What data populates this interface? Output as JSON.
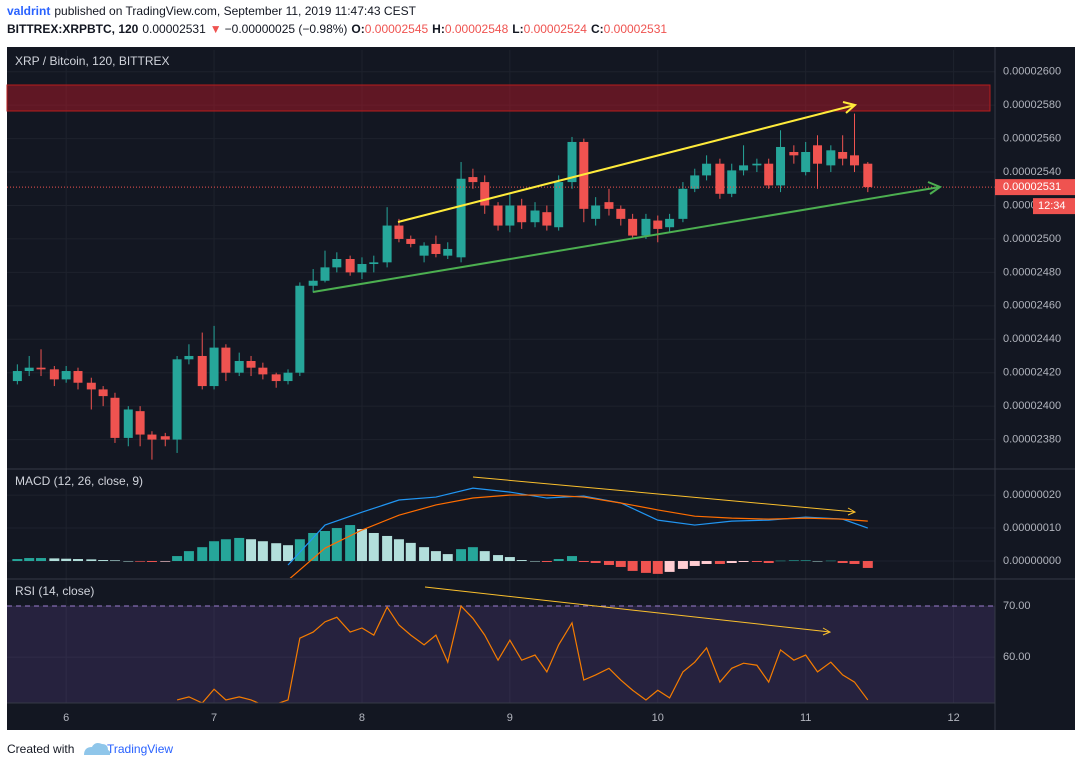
{
  "header": {
    "author": "valdrint",
    "published": "published on TradingView.com, September 11, 2019 11:47:43 CEST",
    "symbol": "BITTREX:XRPBTC, 120",
    "price": "0.00002531",
    "arrow": "▼",
    "change": "−0.00000025 (−0.98%)",
    "quote": [
      {
        "label": "O:",
        "value": "0.00002545"
      },
      {
        "label": "H:",
        "value": "0.00002548"
      },
      {
        "label": "L:",
        "value": "0.00002524"
      },
      {
        "label": "C:",
        "value": "0.00002531"
      }
    ]
  },
  "footer": {
    "text": "Created with",
    "brand": "TradingView"
  },
  "chart_data": [
    {
      "type": "candlestick",
      "title": "XRP / Bitcoin, 120, BITTREX",
      "x": [
        5.67,
        5.75,
        5.83,
        5.92,
        6.0,
        6.08,
        6.17,
        6.25,
        6.33,
        6.42,
        6.5,
        6.58,
        6.67,
        6.75,
        6.83,
        6.92,
        7.0,
        7.08,
        7.17,
        7.25,
        7.33,
        7.42,
        7.5,
        7.58,
        7.67,
        7.75,
        7.83,
        7.92,
        8.0,
        8.08,
        8.17,
        8.25,
        8.33,
        8.42,
        8.5,
        8.58,
        8.67,
        8.75,
        8.83,
        8.92,
        9.0,
        9.08,
        9.17,
        9.25,
        9.33,
        9.42,
        9.5,
        9.58,
        9.67,
        9.75,
        9.83,
        9.92,
        10.0,
        10.08,
        10.17,
        10.25,
        10.33,
        10.42,
        10.5,
        10.58,
        10.67,
        10.75,
        10.83,
        10.92,
        11.0,
        11.08,
        11.17,
        11.25,
        11.33,
        11.42
      ],
      "open": [
        2.415e-05,
        2.421e-05,
        2.423e-05,
        2.422e-05,
        2.416e-05,
        2.421e-05,
        2.414e-05,
        2.41e-05,
        2.405e-05,
        2.381e-05,
        2.397e-05,
        2.383e-05,
        2.382e-05,
        2.38e-05,
        2.428e-05,
        2.43e-05,
        2.412e-05,
        2.435e-05,
        2.42e-05,
        2.427e-05,
        2.423e-05,
        2.419e-05,
        2.415e-05,
        2.42e-05,
        2.472e-05,
        2.475e-05,
        2.483e-05,
        2.488e-05,
        2.48e-05,
        2.485e-05,
        2.486e-05,
        2.508e-05,
        2.5e-05,
        2.49e-05,
        2.497e-05,
        2.49e-05,
        2.489e-05,
        2.537e-05,
        2.534e-05,
        2.52e-05,
        2.508e-05,
        2.52e-05,
        2.51e-05,
        2.516e-05,
        2.507e-05,
        2.534e-05,
        2.558e-05,
        2.512e-05,
        2.522e-05,
        2.518e-05,
        2.512e-05,
        2.502e-05,
        2.511e-05,
        2.507e-05,
        2.512e-05,
        2.53e-05,
        2.538e-05,
        2.545e-05,
        2.527e-05,
        2.541e-05,
        2.544e-05,
        2.545e-05,
        2.532e-05,
        2.552e-05,
        2.54e-05,
        2.556e-05,
        2.544e-05,
        2.552e-05,
        2.55e-05,
        2.545e-05
      ],
      "high": [
        2.425e-05,
        2.43e-05,
        2.434e-05,
        2.424e-05,
        2.424e-05,
        2.423e-05,
        2.417e-05,
        2.412e-05,
        2.408e-05,
        2.4e-05,
        2.4e-05,
        2.385e-05,
        2.384e-05,
        2.43e-05,
        2.437e-05,
        2.444e-05,
        2.448e-05,
        2.437e-05,
        2.432e-05,
        2.43e-05,
        2.426e-05,
        2.42e-05,
        2.422e-05,
        2.474e-05,
        2.482e-05,
        2.493e-05,
        2.492e-05,
        2.49e-05,
        2.489e-05,
        2.49e-05,
        2.519e-05,
        2.512e-05,
        2.502e-05,
        2.498e-05,
        2.502e-05,
        2.498e-05,
        2.546e-05,
        2.542e-05,
        2.538e-05,
        2.522e-05,
        2.527e-05,
        2.524e-05,
        2.522e-05,
        2.52e-05,
        2.538e-05,
        2.561e-05,
        2.56e-05,
        2.525e-05,
        2.53e-05,
        2.52e-05,
        2.515e-05,
        2.515e-05,
        2.514e-05,
        2.515e-05,
        2.534e-05,
        2.542e-05,
        2.55e-05,
        2.548e-05,
        2.545e-05,
        2.556e-05,
        2.548e-05,
        2.548e-05,
        2.565e-05,
        2.556e-05,
        2.558e-05,
        2.562e-05,
        2.556e-05,
        2.562e-05,
        2.575e-05,
        2.546e-05
      ],
      "low": [
        2.413e-05,
        2.418e-05,
        2.418e-05,
        2.412e-05,
        2.414e-05,
        2.41e-05,
        2.398e-05,
        2.4e-05,
        2.378e-05,
        2.376e-05,
        2.376e-05,
        2.368e-05,
        2.376e-05,
        2.372e-05,
        2.425e-05,
        2.41e-05,
        2.41e-05,
        2.415e-05,
        2.418e-05,
        2.418e-05,
        2.416e-05,
        2.411e-05,
        2.413e-05,
        2.418e-05,
        2.468e-05,
        2.474e-05,
        2.48e-05,
        2.478e-05,
        2.476e-05,
        2.48e-05,
        2.483e-05,
        2.498e-05,
        2.495e-05,
        2.486e-05,
        2.489e-05,
        2.488e-05,
        2.486e-05,
        2.53e-05,
        2.515e-05,
        2.505e-05,
        2.504e-05,
        2.506e-05,
        2.507e-05,
        2.505e-05,
        2.505e-05,
        2.53e-05,
        2.51e-05,
        2.508e-05,
        2.514e-05,
        2.508e-05,
        2.5e-05,
        2.5e-05,
        2.498e-05,
        2.504e-05,
        2.51e-05,
        2.528e-05,
        2.535e-05,
        2.524e-05,
        2.525e-05,
        2.538e-05,
        2.54e-05,
        2.53e-05,
        2.528e-05,
        2.545e-05,
        2.538e-05,
        2.53e-05,
        2.54e-05,
        2.544e-05,
        2.54e-05,
        2.528e-05
      ],
      "close": [
        2.421e-05,
        2.423e-05,
        2.422e-05,
        2.416e-05,
        2.421e-05,
        2.414e-05,
        2.41e-05,
        2.406e-05,
        2.381e-05,
        2.398e-05,
        2.383e-05,
        2.38e-05,
        2.38e-05,
        2.428e-05,
        2.43e-05,
        2.412e-05,
        2.435e-05,
        2.42e-05,
        2.427e-05,
        2.423e-05,
        2.419e-05,
        2.415e-05,
        2.42e-05,
        2.472e-05,
        2.475e-05,
        2.483e-05,
        2.488e-05,
        2.48e-05,
        2.485e-05,
        2.486e-05,
        2.508e-05,
        2.5e-05,
        2.497e-05,
        2.496e-05,
        2.491e-05,
        2.494e-05,
        2.536e-05,
        2.534e-05,
        2.52e-05,
        2.508e-05,
        2.52e-05,
        2.51e-05,
        2.517e-05,
        2.508e-05,
        2.534e-05,
        2.558e-05,
        2.518e-05,
        2.52e-05,
        2.518e-05,
        2.512e-05,
        2.502e-05,
        2.512e-05,
        2.506e-05,
        2.512e-05,
        2.53e-05,
        2.538e-05,
        2.545e-05,
        2.527e-05,
        2.541e-05,
        2.544e-05,
        2.545e-05,
        2.532e-05,
        2.555e-05,
        2.55e-05,
        2.552e-05,
        2.545e-05,
        2.553e-05,
        2.548e-05,
        2.544e-05,
        2.531e-05
      ],
      "up_color": "#26a69a",
      "down_color": "#ef5350",
      "last_price": {
        "value": 2.531e-05,
        "label": "0.00002531"
      },
      "countdown": "12:34",
      "xlim": [
        5.6,
        12.28
      ],
      "ylim": [
        2.363e-05,
        2.613e-05
      ],
      "yticks": [
        {
          "value": 2.38e-05,
          "label": "0.00002380"
        },
        {
          "value": 2.4e-05,
          "label": "0.00002400"
        },
        {
          "value": 2.42e-05,
          "label": "0.00002420"
        },
        {
          "value": 2.44e-05,
          "label": "0.00002440"
        },
        {
          "value": 2.46e-05,
          "label": "0.00002460"
        },
        {
          "value": 2.48e-05,
          "label": "0.00002480"
        },
        {
          "value": 2.5e-05,
          "label": "0.00002500"
        },
        {
          "value": 2.52e-05,
          "label": "0.00002520"
        },
        {
          "value": 2.54e-05,
          "label": "0.00002540"
        },
        {
          "value": 2.56e-05,
          "label": "0.00002560"
        },
        {
          "value": 2.58e-05,
          "label": "0.00002580"
        },
        {
          "value": 2.6e-05,
          "label": "0.00002600"
        }
      ]
    },
    {
      "type": "macd",
      "title": "MACD (12, 26, close, 9)",
      "x": [
        5.67,
        5.75,
        5.83,
        5.92,
        6.0,
        6.08,
        6.17,
        6.25,
        6.33,
        6.42,
        6.5,
        6.58,
        6.67,
        6.75,
        6.83,
        6.92,
        7.0,
        7.08,
        7.17,
        7.25,
        7.33,
        7.42,
        7.5,
        7.58,
        7.67,
        7.75,
        7.83,
        7.92,
        8.0,
        8.08,
        8.17,
        8.25,
        8.33,
        8.42,
        8.5,
        8.58,
        8.67,
        8.75,
        8.83,
        8.92,
        9.0,
        9.08,
        9.17,
        9.25,
        9.33,
        9.42,
        9.5,
        9.58,
        9.67,
        9.75,
        9.83,
        9.92,
        10.0,
        10.08,
        10.17,
        10.25,
        10.33,
        10.42,
        10.5,
        10.58,
        10.67,
        10.75,
        10.83,
        10.92,
        11.0,
        11.08,
        11.17,
        11.25,
        11.33,
        11.42
      ],
      "histogram": [
        6e-09,
        9e-09,
        9e-09,
        8e-09,
        7e-09,
        6e-09,
        5e-09,
        3e-09,
        2e-09,
        0,
        -2e-09,
        -3e-09,
        -2e-09,
        1.5e-08,
        3e-08,
        4.2e-08,
        6e-08,
        6.6e-08,
        7e-08,
        6.6e-08,
        6e-08,
        5.4e-08,
        4.8e-08,
        6.6e-08,
        8.5e-08,
        9.1e-08,
        1e-07,
        1.09e-07,
        9.7e-08,
        8.5e-08,
        7.6e-08,
        6.6e-08,
        5.5e-08,
        4.2e-08,
        3e-08,
        2.1e-08,
        3.6e-08,
        4.2e-08,
        3e-08,
        1.8e-08,
        1.2e-08,
        3e-09,
        0,
        -3e-09,
        6e-09,
        1.5e-08,
        -3e-09,
        -6e-09,
        -1.2e-08,
        -1.8e-08,
        -3e-08,
        -3.6e-08,
        -3.9e-08,
        -3.3e-08,
        -2.4e-08,
        -1.5e-08,
        -9e-09,
        -9e-09,
        -6e-09,
        -3e-09,
        -3e-09,
        -6e-09,
        1e-09,
        2e-09,
        2e-09,
        0,
        1e-09,
        -6e-09,
        -9e-09,
        -2.1e-08
      ],
      "histogram_colors": [
        "#26a69a",
        "#b2dfdb",
        "#ef5350",
        "#ffcdd2"
      ],
      "line_x": [
        7.5,
        7.75,
        8,
        8.25,
        8.5,
        8.75,
        9,
        9.25,
        9.5,
        9.75,
        10,
        10.25,
        10.5,
        10.75,
        11,
        11.25,
        11.42
      ],
      "macd": [
        -1.2e-08,
        1.09e-07,
        1.48e-07,
        1.85e-07,
        1.94e-07,
        2.21e-07,
        2.09e-07,
        1.91e-07,
        1.97e-07,
        1.76e-07,
        1.24e-07,
        1.09e-07,
        1.21e-07,
        1.24e-07,
        1.33e-07,
        1.27e-07,
        1e-07
      ],
      "signal": [
        -5.8e-08,
        3.9e-08,
        9.4e-08,
        1.39e-07,
        1.7e-07,
        1.91e-07,
        2e-07,
        2e-07,
        1.94e-07,
        1.76e-07,
        1.55e-07,
        1.36e-07,
        1.3e-07,
        1.27e-07,
        1.3e-07,
        1.27e-07,
        1.21e-07
      ],
      "macd_color": "#2196f3",
      "signal_color": "#ff6d00",
      "xlim": [
        5.6,
        12.28
      ],
      "ylim": [
        -5.15e-08,
        2.76e-07
      ],
      "yticks": [
        {
          "value": 0,
          "label": "0.00000000"
        },
        {
          "value": 1e-07,
          "label": "0.00000010"
        },
        {
          "value": 2e-07,
          "label": "0.00000020"
        }
      ]
    },
    {
      "type": "line",
      "title": "RSI (14, close)",
      "x": [
        6.75,
        6.83,
        6.92,
        7.0,
        7.08,
        7.17,
        7.25,
        7.33,
        7.42,
        7.5,
        7.58,
        7.67,
        7.75,
        7.83,
        7.92,
        8.0,
        8.08,
        8.17,
        8.25,
        8.33,
        8.42,
        8.5,
        8.58,
        8.67,
        8.75,
        8.83,
        8.92,
        9.0,
        9.08,
        9.17,
        9.25,
        9.33,
        9.42,
        9.5,
        9.58,
        9.67,
        9.75,
        9.83,
        9.92,
        10.0,
        10.08,
        10.17,
        10.25,
        10.33,
        10.42,
        10.5,
        10.58,
        10.67,
        10.75,
        10.83,
        10.92,
        11.0,
        11.08,
        11.17,
        11.25,
        11.33,
        11.42
      ],
      "values": [
        51.6,
        52.2,
        51,
        53.7,
        51.6,
        52.2,
        51.6,
        50.6,
        50.8,
        51.6,
        63.7,
        64.9,
        66.9,
        67.8,
        64.9,
        65.7,
        64.3,
        69.8,
        66.3,
        64.3,
        62.4,
        64.3,
        59,
        70,
        67.6,
        64.3,
        59.4,
        63.3,
        59.4,
        60.4,
        57.1,
        62.4,
        66.7,
        55.5,
        56.5,
        57.8,
        55.5,
        53.5,
        51.6,
        53.5,
        52,
        57.1,
        59,
        61.8,
        55.1,
        57.8,
        58.8,
        58.4,
        55.1,
        61.4,
        59.4,
        60.4,
        57.1,
        59,
        56.5,
        55.1,
        51.6
      ],
      "color": "#f57c00",
      "upper_band": 70,
      "xlim": [
        5.6,
        12.28
      ],
      "ylim": [
        51,
        75.1
      ],
      "xticks": [
        6,
        7,
        8,
        9,
        10,
        11,
        12
      ],
      "yticks": [
        {
          "value": 60,
          "label": "60.00"
        },
        {
          "value": 70,
          "label": "70.00"
        }
      ]
    }
  ]
}
